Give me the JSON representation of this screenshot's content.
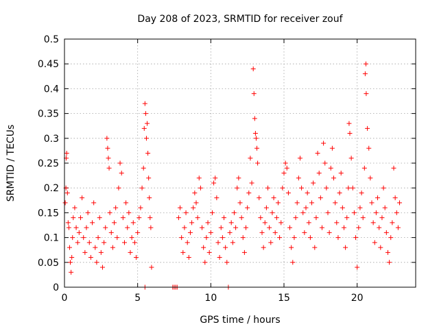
{
  "chart_data": {
    "type": "scatter",
    "title": "Day 208 of 2023, SRMTID for receiver zouf",
    "xlabel": "GPS time / hours",
    "ylabel": "SRMTID / TECUs",
    "xlim": [
      0,
      24
    ],
    "ylim": [
      0,
      0.5
    ],
    "xticks": [
      0,
      5,
      10,
      15,
      20
    ],
    "xtick_labels": [
      "0",
      "5",
      "10",
      "15",
      "20"
    ],
    "yticks": [
      0,
      0.05,
      0.1,
      0.15,
      0.2,
      0.25,
      0.3,
      0.35,
      0.4,
      0.45,
      0.5
    ],
    "ytick_labels": [
      "0",
      "0.05",
      "0.1",
      "0.15",
      "0.2",
      "0.25",
      "0.3",
      "0.35",
      "0.4",
      "0.45",
      "0.5"
    ],
    "grid": true,
    "marker": "+",
    "color": "#ff0000",
    "series": [
      {
        "name": "SRMTID",
        "points": [
          [
            0.05,
            0.17
          ],
          [
            0.1,
            0.2
          ],
          [
            0.12,
            0.26
          ],
          [
            0.15,
            0.27
          ],
          [
            0.2,
            0.19
          ],
          [
            0.25,
            0.13
          ],
          [
            0.3,
            0.12
          ],
          [
            0.35,
            0.08
          ],
          [
            0.4,
            0.05
          ],
          [
            0.45,
            0.03
          ],
          [
            0.5,
            0.06
          ],
          [
            0.55,
            0.1
          ],
          [
            0.6,
            0.14
          ],
          [
            0.7,
            0.16
          ],
          [
            0.8,
            0.12
          ],
          [
            0.9,
            0.09
          ],
          [
            1.0,
            0.11
          ],
          [
            1.1,
            0.14
          ],
          [
            1.2,
            0.18
          ],
          [
            1.3,
            0.1
          ],
          [
            1.4,
            0.07
          ],
          [
            1.5,
            0.12
          ],
          [
            1.6,
            0.15
          ],
          [
            1.7,
            0.09
          ],
          [
            1.8,
            0.06
          ],
          [
            1.9,
            0.13
          ],
          [
            2.0,
            0.17
          ],
          [
            2.1,
            0.08
          ],
          [
            2.2,
            0.05
          ],
          [
            2.3,
            0.1
          ],
          [
            2.4,
            0.14
          ],
          [
            2.5,
            0.07
          ],
          [
            2.6,
            0.04
          ],
          [
            2.7,
            0.09
          ],
          [
            2.8,
            0.12
          ],
          [
            2.9,
            0.3
          ],
          [
            2.95,
            0.28
          ],
          [
            3.0,
            0.26
          ],
          [
            3.05,
            0.24
          ],
          [
            3.1,
            0.15
          ],
          [
            3.2,
            0.11
          ],
          [
            3.3,
            0.08
          ],
          [
            3.4,
            0.13
          ],
          [
            3.5,
            0.16
          ],
          [
            3.6,
            0.1
          ],
          [
            3.7,
            0.2
          ],
          [
            3.8,
            0.25
          ],
          [
            3.9,
            0.23
          ],
          [
            4.0,
            0.14
          ],
          [
            4.1,
            0.09
          ],
          [
            4.2,
            0.17
          ],
          [
            4.3,
            0.12
          ],
          [
            4.4,
            0.15
          ],
          [
            4.5,
            0.07
          ],
          [
            4.6,
            0.1
          ],
          [
            4.7,
            0.13
          ],
          [
            4.8,
            0.09
          ],
          [
            4.9,
            0.06
          ],
          [
            5.0,
            0.11
          ],
          [
            5.1,
            0.14
          ],
          [
            5.2,
            0.16
          ],
          [
            5.3,
            0.2
          ],
          [
            5.4,
            0.24
          ],
          [
            5.45,
            0.32
          ],
          [
            5.5,
            0.37
          ],
          [
            5.55,
            0.35
          ],
          [
            5.6,
            0.3
          ],
          [
            5.65,
            0.33
          ],
          [
            5.7,
            0.27
          ],
          [
            5.75,
            0.22
          ],
          [
            5.8,
            0.18
          ],
          [
            5.85,
            0.14
          ],
          [
            5.9,
            0.12
          ],
          [
            5.95,
            0.04
          ],
          [
            5.5,
            0.0
          ],
          [
            7.4,
            0.0
          ],
          [
            7.5,
            0.0
          ],
          [
            7.6,
            0.0
          ],
          [
            7.7,
            0.0
          ],
          [
            7.8,
            0.14
          ],
          [
            7.9,
            0.16
          ],
          [
            8.0,
            0.1
          ],
          [
            8.1,
            0.07
          ],
          [
            8.2,
            0.12
          ],
          [
            8.3,
            0.15
          ],
          [
            8.4,
            0.09
          ],
          [
            8.5,
            0.06
          ],
          [
            8.6,
            0.11
          ],
          [
            8.7,
            0.13
          ],
          [
            8.8,
            0.16
          ],
          [
            8.9,
            0.19
          ],
          [
            9.0,
            0.17
          ],
          [
            9.1,
            0.14
          ],
          [
            9.2,
            0.22
          ],
          [
            9.3,
            0.2
          ],
          [
            9.4,
            0.12
          ],
          [
            9.5,
            0.08
          ],
          [
            9.6,
            0.05
          ],
          [
            9.7,
            0.1
          ],
          [
            9.8,
            0.13
          ],
          [
            9.9,
            0.07
          ],
          [
            10.0,
            0.11
          ],
          [
            10.1,
            0.15
          ],
          [
            10.2,
            0.21
          ],
          [
            10.3,
            0.22
          ],
          [
            10.4,
            0.18
          ],
          [
            10.5,
            0.09
          ],
          [
            10.6,
            0.06
          ],
          [
            10.7,
            0.12
          ],
          [
            10.8,
            0.1
          ],
          [
            10.9,
            0.14
          ],
          [
            11.0,
            0.08
          ],
          [
            11.1,
            0.05
          ],
          [
            11.2,
            0.0
          ],
          [
            11.3,
            0.11
          ],
          [
            11.4,
            0.13
          ],
          [
            11.5,
            0.09
          ],
          [
            11.6,
            0.15
          ],
          [
            11.7,
            0.12
          ],
          [
            11.8,
            0.2
          ],
          [
            11.9,
            0.22
          ],
          [
            12.0,
            0.17
          ],
          [
            12.1,
            0.14
          ],
          [
            12.2,
            0.1
          ],
          [
            12.3,
            0.07
          ],
          [
            12.4,
            0.12
          ],
          [
            12.5,
            0.16
          ],
          [
            12.6,
            0.19
          ],
          [
            12.7,
            0.26
          ],
          [
            12.8,
            0.21
          ],
          [
            12.9,
            0.44
          ],
          [
            12.95,
            0.39
          ],
          [
            13.0,
            0.34
          ],
          [
            13.05,
            0.31
          ],
          [
            13.1,
            0.3
          ],
          [
            13.15,
            0.28
          ],
          [
            13.2,
            0.25
          ],
          [
            13.3,
            0.18
          ],
          [
            13.4,
            0.14
          ],
          [
            13.5,
            0.11
          ],
          [
            13.6,
            0.08
          ],
          [
            13.7,
            0.13
          ],
          [
            13.8,
            0.16
          ],
          [
            13.9,
            0.2
          ],
          [
            14.0,
            0.12
          ],
          [
            14.1,
            0.09
          ],
          [
            14.2,
            0.15
          ],
          [
            14.3,
            0.18
          ],
          [
            14.4,
            0.11
          ],
          [
            14.5,
            0.14
          ],
          [
            14.6,
            0.17
          ],
          [
            14.7,
            0.1
          ],
          [
            14.8,
            0.13
          ],
          [
            14.9,
            0.2
          ],
          [
            15.0,
            0.23
          ],
          [
            15.1,
            0.25
          ],
          [
            15.2,
            0.24
          ],
          [
            15.3,
            0.19
          ],
          [
            15.4,
            0.12
          ],
          [
            15.5,
            0.08
          ],
          [
            15.6,
            0.05
          ],
          [
            15.7,
            0.1
          ],
          [
            15.8,
            0.14
          ],
          [
            15.9,
            0.17
          ],
          [
            16.0,
            0.22
          ],
          [
            16.1,
            0.26
          ],
          [
            16.2,
            0.2
          ],
          [
            16.3,
            0.15
          ],
          [
            16.4,
            0.11
          ],
          [
            16.5,
            0.16
          ],
          [
            16.6,
            0.19
          ],
          [
            16.7,
            0.13
          ],
          [
            16.8,
            0.1
          ],
          [
            16.9,
            0.17
          ],
          [
            17.0,
            0.21
          ],
          [
            17.1,
            0.08
          ],
          [
            17.2,
            0.14
          ],
          [
            17.3,
            0.27
          ],
          [
            17.4,
            0.23
          ],
          [
            17.5,
            0.18
          ],
          [
            17.6,
            0.12
          ],
          [
            17.7,
            0.29
          ],
          [
            17.8,
            0.25
          ],
          [
            17.9,
            0.2
          ],
          [
            18.0,
            0.15
          ],
          [
            18.1,
            0.11
          ],
          [
            18.2,
            0.24
          ],
          [
            18.3,
            0.28
          ],
          [
            18.4,
            0.22
          ],
          [
            18.5,
            0.17
          ],
          [
            18.6,
            0.13
          ],
          [
            18.7,
            0.1
          ],
          [
            18.8,
            0.19
          ],
          [
            18.9,
            0.23
          ],
          [
            19.0,
            0.16
          ],
          [
            19.1,
            0.12
          ],
          [
            19.2,
            0.08
          ],
          [
            19.3,
            0.14
          ],
          [
            19.4,
            0.2
          ],
          [
            19.45,
            0.33
          ],
          [
            19.5,
            0.31
          ],
          [
            19.6,
            0.26
          ],
          [
            19.7,
            0.2
          ],
          [
            19.8,
            0.15
          ],
          [
            19.9,
            0.1
          ],
          [
            20.0,
            0.04
          ],
          [
            20.1,
            0.12
          ],
          [
            20.2,
            0.16
          ],
          [
            20.3,
            0.19
          ],
          [
            20.4,
            0.14
          ],
          [
            20.5,
            0.24
          ],
          [
            20.55,
            0.43
          ],
          [
            20.6,
            0.45
          ],
          [
            20.62,
            0.39
          ],
          [
            20.7,
            0.32
          ],
          [
            20.8,
            0.28
          ],
          [
            20.9,
            0.22
          ],
          [
            21.0,
            0.17
          ],
          [
            21.1,
            0.13
          ],
          [
            21.2,
            0.09
          ],
          [
            21.3,
            0.15
          ],
          [
            21.4,
            0.18
          ],
          [
            21.5,
            0.12
          ],
          [
            21.6,
            0.08
          ],
          [
            21.7,
            0.14
          ],
          [
            21.8,
            0.2
          ],
          [
            21.9,
            0.16
          ],
          [
            22.0,
            0.11
          ],
          [
            22.1,
            0.07
          ],
          [
            22.2,
            0.05
          ],
          [
            22.3,
            0.1
          ],
          [
            22.4,
            0.13
          ],
          [
            22.5,
            0.24
          ],
          [
            22.6,
            0.18
          ],
          [
            22.7,
            0.15
          ],
          [
            22.8,
            0.12
          ],
          [
            22.9,
            0.17
          ]
        ]
      }
    ]
  }
}
